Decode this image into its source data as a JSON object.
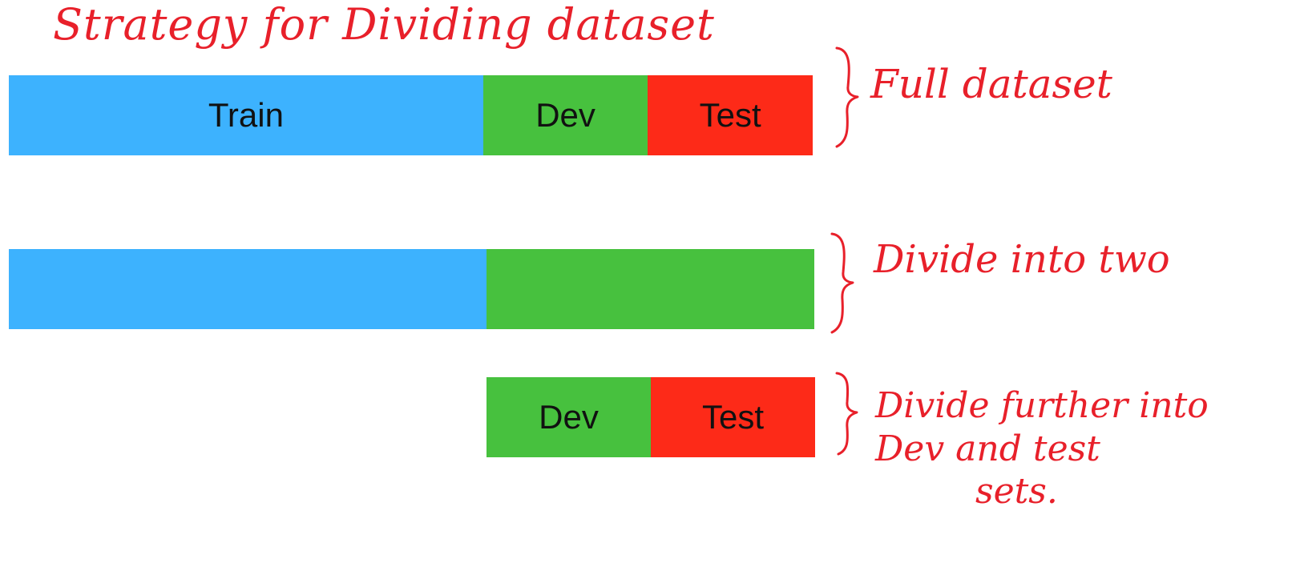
{
  "title": "Strategy for Dividing dataset",
  "colors": {
    "train": "#3db2fe",
    "dev": "#47c13e",
    "test": "#fd2a18",
    "ink": "#e8202a"
  },
  "rows": [
    {
      "segments": [
        {
          "label": "Train",
          "color": "#3db2fe",
          "share": 0.59
        },
        {
          "label": "Dev",
          "color": "#47c13e",
          "share": 0.205
        },
        {
          "label": "Test",
          "color": "#fd2a18",
          "share": 0.205
        }
      ],
      "annotation": "Full dataset"
    },
    {
      "segments": [
        {
          "label": "",
          "color": "#3db2fe",
          "share": 0.593
        },
        {
          "label": "",
          "color": "#47c13e",
          "share": 0.407
        }
      ],
      "annotation": "Divide into two"
    },
    {
      "segments": [
        {
          "label": "Dev",
          "color": "#47c13e",
          "share": 0.5
        },
        {
          "label": "Test",
          "color": "#fd2a18",
          "share": 0.5
        }
      ],
      "annotation_lines": [
        "Divide further into",
        "Dev and test",
        "sets."
      ]
    }
  ]
}
